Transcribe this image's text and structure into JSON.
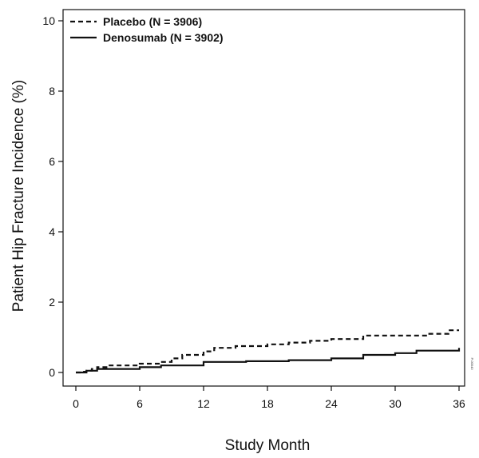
{
  "chart_data": {
    "type": "line",
    "title": "",
    "xlabel": "Study Month",
    "ylabel": "Patient Hip Fracture Incidence (%)",
    "xlim": [
      0,
      36
    ],
    "ylim": [
      0,
      10
    ],
    "xticks": [
      0,
      6,
      12,
      18,
      24,
      30,
      36
    ],
    "yticks": [
      0,
      2,
      4,
      6,
      8,
      10
    ],
    "grid": false,
    "legend_position": "top-left",
    "step": true,
    "series": [
      {
        "name": "Placebo (N = 3906)",
        "line_style": "dashed",
        "color": "#111111",
        "x": [
          0,
          0.5,
          1,
          1.5,
          2,
          3,
          6,
          8,
          9,
          10,
          12,
          13,
          15,
          18,
          20,
          22,
          24,
          27,
          30,
          33,
          35,
          36
        ],
        "y": [
          0,
          0.02,
          0.05,
          0.1,
          0.15,
          0.2,
          0.25,
          0.3,
          0.4,
          0.5,
          0.6,
          0.7,
          0.75,
          0.8,
          0.85,
          0.9,
          0.95,
          1.05,
          1.05,
          1.1,
          1.2,
          1.2
        ]
      },
      {
        "name": "Denosumab (N = 3902)",
        "line_style": "solid",
        "color": "#111111",
        "x": [
          0,
          1,
          2,
          6,
          8,
          12,
          16,
          20,
          24,
          27,
          30,
          32,
          36
        ],
        "y": [
          0,
          0.05,
          0.1,
          0.15,
          0.2,
          0.3,
          0.32,
          0.35,
          0.4,
          0.5,
          0.55,
          0.62,
          0.7
        ]
      }
    ],
    "side_code": "P-00040"
  }
}
